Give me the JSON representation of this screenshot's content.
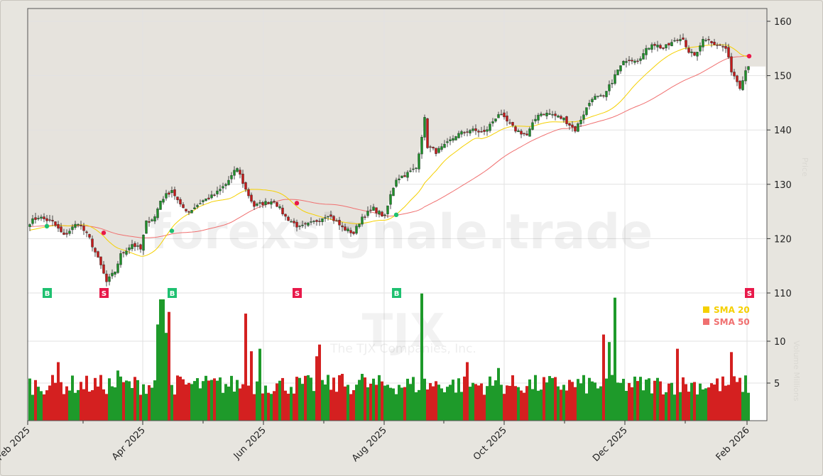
{
  "chart_data": {
    "type": "candlestick",
    "ticker": "TJX",
    "company": "The TJX Companies, Inc.",
    "watermark": "forexsignale.trade",
    "y_axis_label": "Price",
    "volume_axis_label": "Volume Millions",
    "ylim": [
      106,
      162
    ],
    "yticks": [
      "160",
      "150",
      "140",
      "130",
      "120",
      "110"
    ],
    "ytick_values": [
      160,
      150,
      140,
      130,
      120,
      110
    ],
    "volume_ylim": [
      0,
      18
    ],
    "volume_ticks": [
      "10",
      "5"
    ],
    "volume_tick_values": [
      10,
      5
    ],
    "x_ticks": [
      "Feb 2025",
      "Apr 2025",
      "Jun 2025",
      "Aug 2025",
      "Oct 2025",
      "Dec 2025",
      "Feb 2026"
    ],
    "bars": 254,
    "close_keypoints": [
      [
        0,
        123
      ],
      [
        3,
        124
      ],
      [
        8,
        123
      ],
      [
        12,
        120.5
      ],
      [
        17,
        123
      ],
      [
        21,
        120
      ],
      [
        25,
        115
      ],
      [
        27,
        112
      ],
      [
        30,
        114
      ],
      [
        32,
        117
      ],
      [
        36,
        119
      ],
      [
        39,
        118
      ],
      [
        41,
        123
      ],
      [
        44,
        124
      ],
      [
        46,
        127
      ],
      [
        50,
        129
      ],
      [
        53,
        126
      ],
      [
        56,
        125
      ],
      [
        61,
        127
      ],
      [
        65,
        128
      ],
      [
        69,
        130
      ],
      [
        73,
        133
      ],
      [
        76,
        129
      ],
      [
        79,
        126
      ],
      [
        82,
        126.5
      ],
      [
        86,
        127
      ],
      [
        90,
        124
      ],
      [
        95,
        122
      ],
      [
        100,
        123
      ],
      [
        105,
        124.5
      ],
      [
        110,
        122
      ],
      [
        114,
        121
      ],
      [
        117,
        124
      ],
      [
        121,
        125.5
      ],
      [
        125,
        124
      ],
      [
        127,
        128
      ],
      [
        129,
        131
      ],
      [
        133,
        132
      ],
      [
        136,
        133
      ],
      [
        139,
        142
      ],
      [
        140,
        137
      ],
      [
        143,
        136
      ],
      [
        146,
        137
      ],
      [
        150,
        139
      ],
      [
        155,
        140
      ],
      [
        160,
        139.5
      ],
      [
        165,
        143
      ],
      [
        169,
        141
      ],
      [
        171,
        140
      ],
      [
        175,
        139
      ],
      [
        179,
        143
      ],
      [
        183,
        143
      ],
      [
        188,
        142
      ],
      [
        192,
        140
      ],
      [
        194,
        142
      ],
      [
        198,
        146
      ],
      [
        202,
        146
      ],
      [
        204,
        148
      ],
      [
        207,
        151
      ],
      [
        210,
        153
      ],
      [
        214,
        153
      ],
      [
        216,
        154
      ],
      [
        219,
        156
      ],
      [
        223,
        155
      ],
      [
        226,
        156
      ],
      [
        230,
        157
      ],
      [
        232,
        154
      ],
      [
        235,
        154
      ],
      [
        237,
        157
      ],
      [
        241,
        156
      ],
      [
        245,
        155
      ],
      [
        247,
        151
      ],
      [
        250,
        148
      ],
      [
        252,
        151
      ],
      [
        253,
        152
      ]
    ],
    "volume_base_millions": 4.8,
    "volume_spikes": [
      [
        10,
        7.5
      ],
      [
        31,
        6.5
      ],
      [
        45,
        12
      ],
      [
        46,
        15
      ],
      [
        47,
        15
      ],
      [
        48,
        11
      ],
      [
        49,
        13.5
      ],
      [
        76,
        13.3
      ],
      [
        78,
        8.8
      ],
      [
        81,
        9.1
      ],
      [
        101,
        8.2
      ],
      [
        102,
        9.6
      ],
      [
        110,
        6.1
      ],
      [
        117,
        6.1
      ],
      [
        138,
        15.7
      ],
      [
        154,
        7.5
      ],
      [
        165,
        6.8
      ],
      [
        202,
        10.8
      ],
      [
        204,
        9.9
      ],
      [
        206,
        15.2
      ],
      [
        228,
        9.1
      ],
      [
        247,
        8.7
      ]
    ],
    "sma_periods": [
      20,
      50
    ],
    "legend": [
      {
        "label": "SMA 20",
        "color": "#f5d000"
      },
      {
        "label": "SMA 50",
        "color": "#f07070"
      }
    ],
    "signals": [
      {
        "bar": 6,
        "type": "B"
      },
      {
        "bar": 26,
        "type": "S"
      },
      {
        "bar": 50,
        "type": "B"
      },
      {
        "bar": 94,
        "type": "S"
      },
      {
        "bar": 129,
        "type": "B"
      },
      {
        "bar": 253,
        "type": "S"
      }
    ],
    "colors": {
      "up": "#1e9a2a",
      "down": "#d42020",
      "buy": "#1ec070",
      "sell": "#e8194a"
    }
  }
}
